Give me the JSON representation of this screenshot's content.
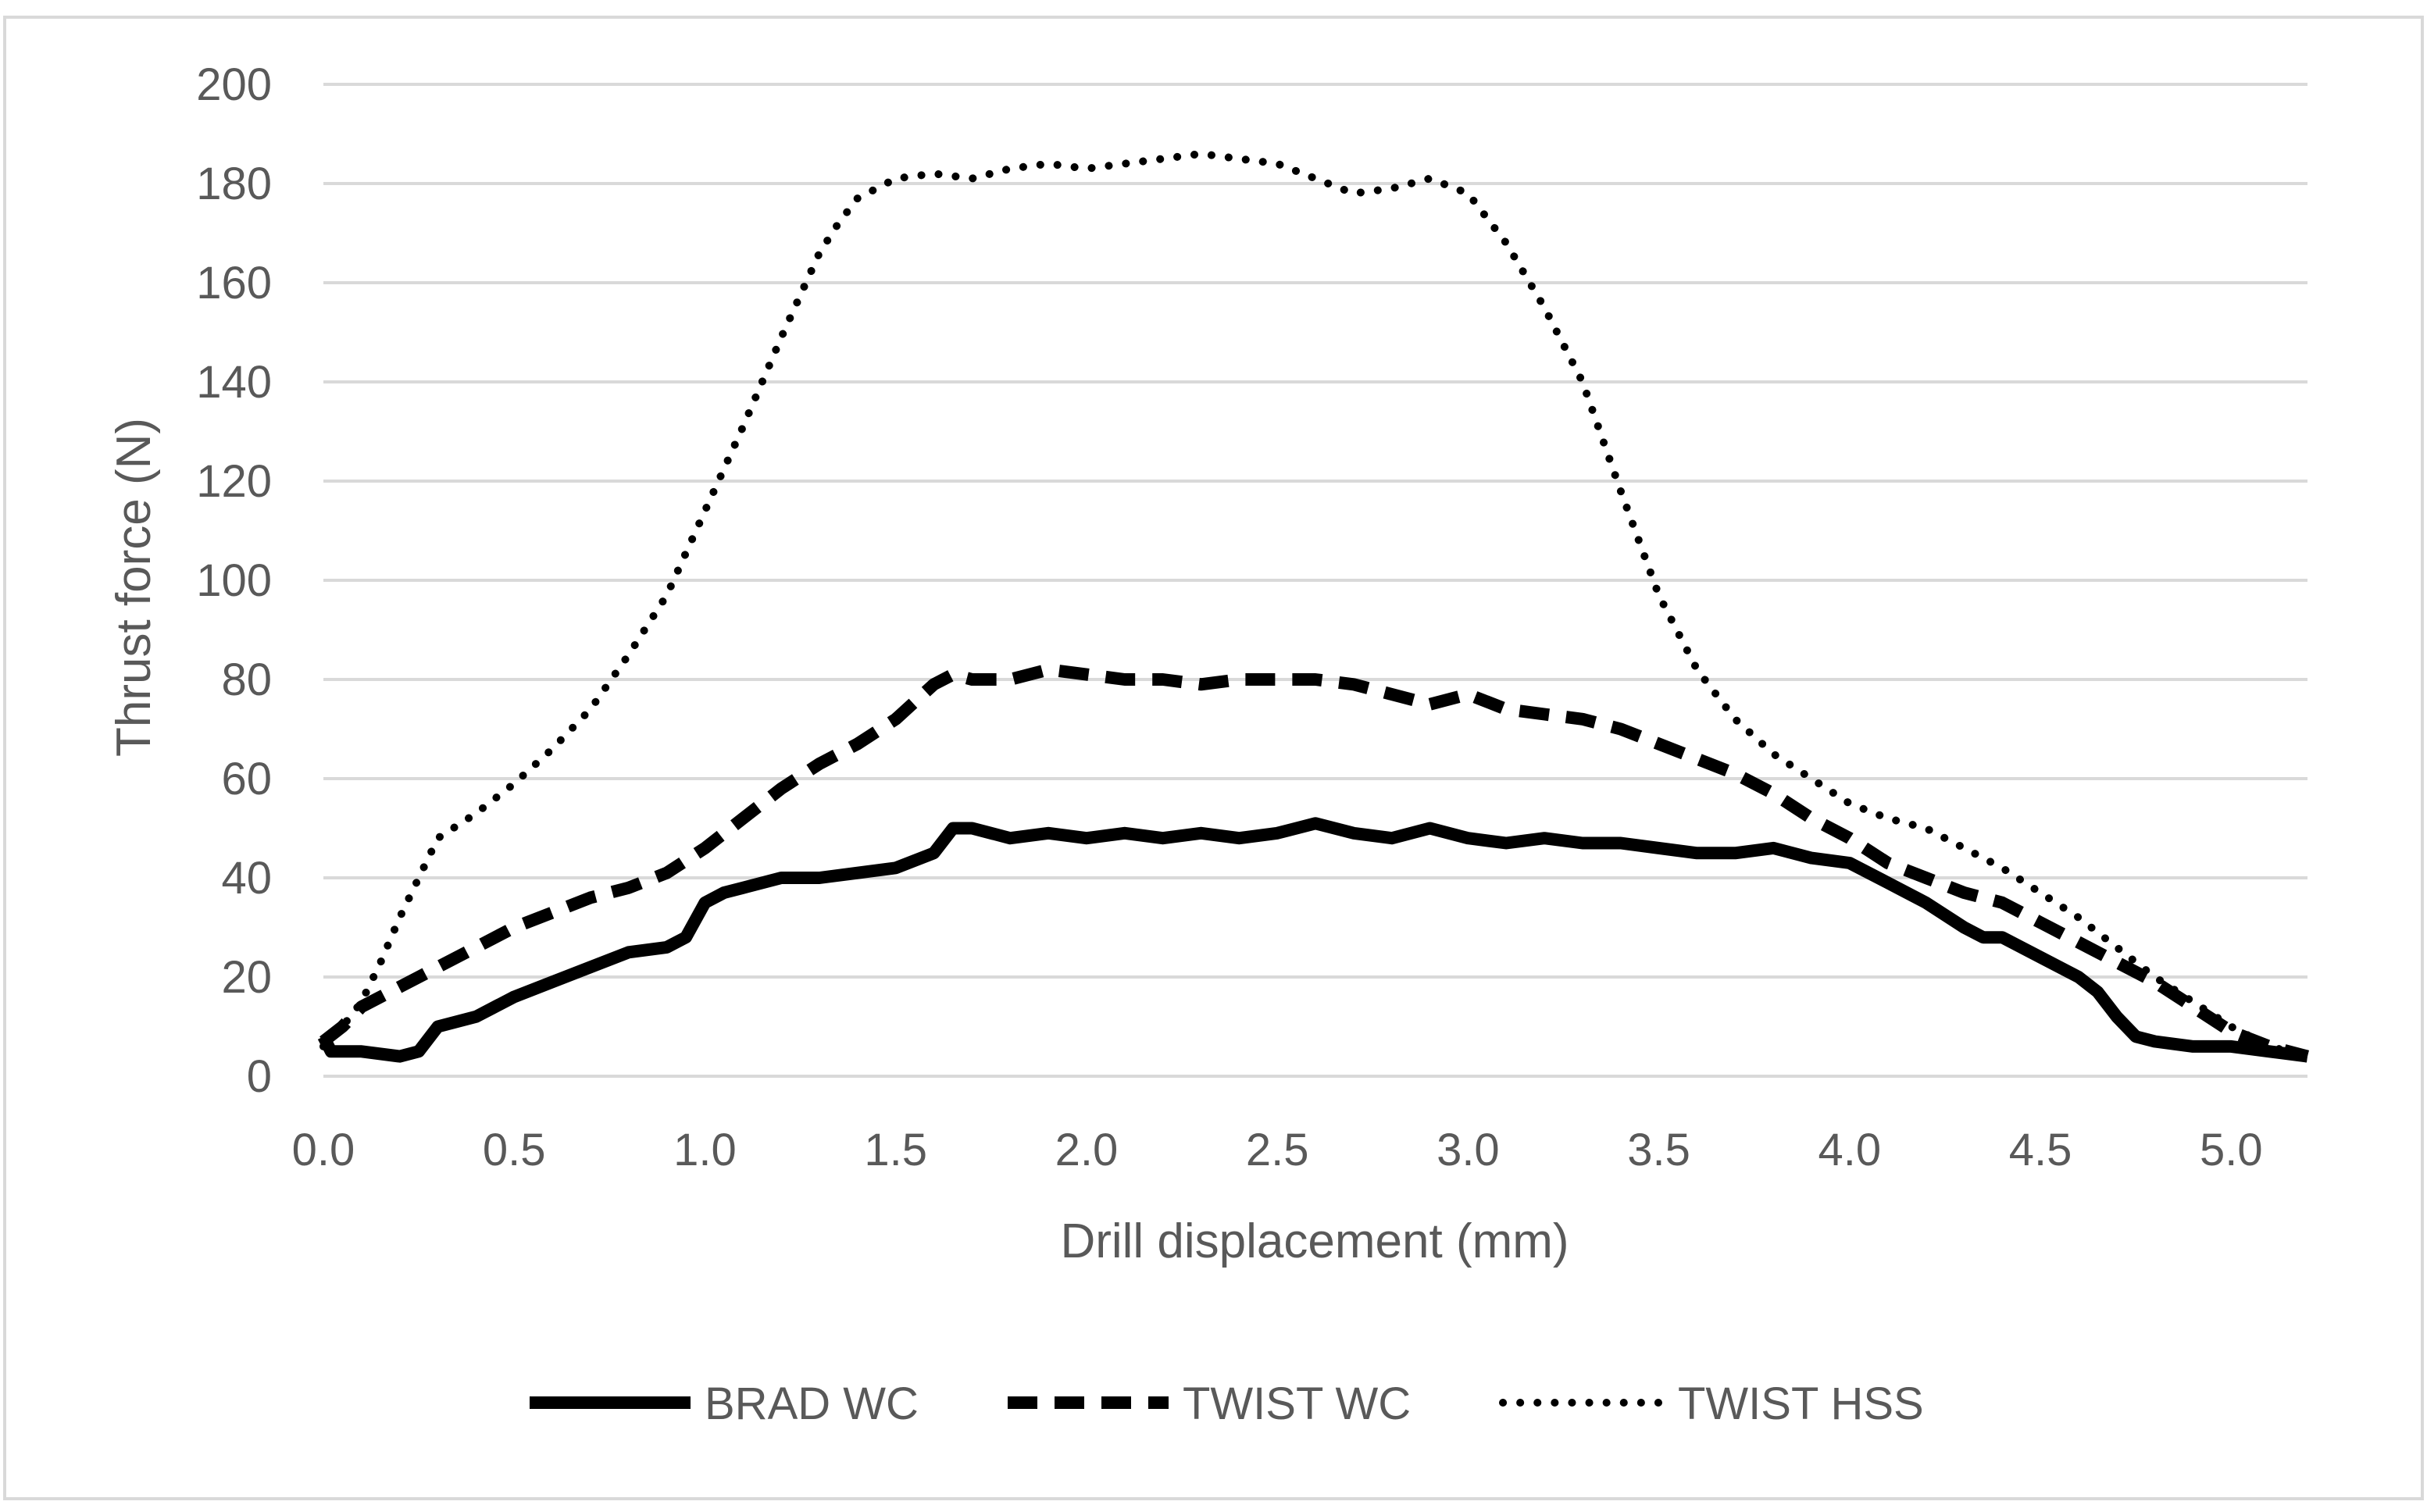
{
  "chart_data": {
    "type": "line",
    "title": "",
    "xlabel": "Drill displacement (mm)",
    "ylabel": "Thrust force (N)",
    "xlim": [
      0,
      5.2
    ],
    "ylim": [
      0,
      200
    ],
    "xticks": [
      "0.0",
      "0.5",
      "1.0",
      "1.5",
      "2.0",
      "2.5",
      "3.0",
      "3.5",
      "4.0",
      "4.5",
      "5.0"
    ],
    "yticks": [
      "0",
      "20",
      "40",
      "60",
      "80",
      "100",
      "120",
      "140",
      "160",
      "180",
      "200"
    ],
    "grid": true,
    "legend_position": "bottom",
    "series": [
      {
        "name": "BRAD WC",
        "style": "solid",
        "color": "#000000",
        "x": [
          0.0,
          0.02,
          0.1,
          0.2,
          0.25,
          0.3,
          0.4,
          0.5,
          0.6,
          0.7,
          0.8,
          0.9,
          0.95,
          1.0,
          1.05,
          1.1,
          1.2,
          1.3,
          1.4,
          1.5,
          1.6,
          1.65,
          1.7,
          1.8,
          1.9,
          2.0,
          2.1,
          2.2,
          2.3,
          2.4,
          2.5,
          2.6,
          2.7,
          2.8,
          2.9,
          3.0,
          3.1,
          3.2,
          3.3,
          3.4,
          3.5,
          3.6,
          3.7,
          3.8,
          3.9,
          4.0,
          4.1,
          4.2,
          4.3,
          4.35,
          4.4,
          4.5,
          4.6,
          4.65,
          4.7,
          4.75,
          4.8,
          4.9,
          5.0,
          5.1,
          5.2
        ],
        "y": [
          8,
          5,
          5,
          4,
          5,
          10,
          12,
          16,
          19,
          22,
          25,
          26,
          28,
          35,
          37,
          38,
          40,
          40,
          41,
          42,
          45,
          50,
          50,
          48,
          49,
          48,
          49,
          48,
          49,
          48,
          49,
          51,
          49,
          48,
          50,
          48,
          47,
          48,
          47,
          47,
          46,
          45,
          45,
          46,
          44,
          43,
          39,
          35,
          30,
          28,
          28,
          24,
          20,
          17,
          12,
          8,
          7,
          6,
          6,
          5,
          4
        ]
      },
      {
        "name": "TWIST WC",
        "style": "dashed",
        "color": "#000000",
        "x": [
          0.0,
          0.05,
          0.1,
          0.2,
          0.3,
          0.4,
          0.5,
          0.6,
          0.7,
          0.8,
          0.9,
          1.0,
          1.1,
          1.2,
          1.3,
          1.4,
          1.5,
          1.6,
          1.65,
          1.7,
          1.8,
          1.9,
          2.0,
          2.1,
          2.2,
          2.3,
          2.4,
          2.5,
          2.6,
          2.7,
          2.8,
          2.9,
          3.0,
          3.1,
          3.2,
          3.3,
          3.4,
          3.5,
          3.6,
          3.7,
          3.8,
          3.9,
          4.0,
          4.1,
          4.2,
          4.3,
          4.4,
          4.5,
          4.6,
          4.7,
          4.8,
          4.9,
          5.0,
          5.1,
          5.2
        ],
        "y": [
          7,
          10,
          14,
          18,
          22,
          26,
          30,
          33,
          36,
          38,
          41,
          46,
          52,
          58,
          63,
          67,
          72,
          79,
          81,
          80,
          80,
          82,
          81,
          80,
          80,
          79,
          80,
          80,
          80,
          79,
          77,
          75,
          77,
          74,
          73,
          72,
          70,
          67,
          64,
          61,
          57,
          52,
          48,
          43,
          40,
          37,
          35,
          31,
          27,
          23,
          19,
          14,
          9,
          6,
          4
        ]
      },
      {
        "name": "TWIST HSS",
        "style": "dotted",
        "color": "#000000",
        "x": [
          0.0,
          0.05,
          0.1,
          0.15,
          0.2,
          0.25,
          0.3,
          0.4,
          0.5,
          0.6,
          0.7,
          0.8,
          0.9,
          1.0,
          1.1,
          1.2,
          1.3,
          1.35,
          1.4,
          1.5,
          1.6,
          1.7,
          1.8,
          1.9,
          2.0,
          2.1,
          2.2,
          2.3,
          2.4,
          2.5,
          2.6,
          2.7,
          2.8,
          2.9,
          3.0,
          3.1,
          3.2,
          3.3,
          3.4,
          3.5,
          3.6,
          3.7,
          3.8,
          3.9,
          4.0,
          4.1,
          4.2,
          4.3,
          4.4,
          4.5,
          4.6,
          4.7,
          4.8,
          4.9,
          5.0,
          5.1,
          5.2
        ],
        "y": [
          6,
          10,
          15,
          23,
          32,
          40,
          48,
          53,
          59,
          66,
          74,
          85,
          97,
          114,
          131,
          149,
          166,
          172,
          177,
          181,
          182,
          181,
          183,
          184,
          183,
          184,
          185,
          186,
          185,
          184,
          181,
          178,
          179,
          181,
          178,
          168,
          155,
          140,
          118,
          97,
          82,
          72,
          65,
          60,
          55,
          52,
          50,
          46,
          42,
          37,
          32,
          26,
          20,
          15,
          10,
          6,
          4
        ]
      }
    ]
  }
}
